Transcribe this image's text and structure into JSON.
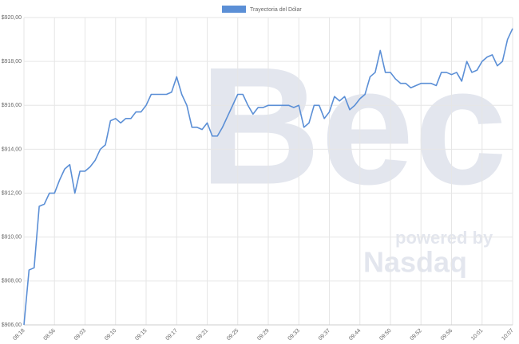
{
  "chart_data": {
    "type": "line",
    "watermark": [
      "Bec",
      "powered by",
      "Nasdaq"
    ],
    "categories": [
      "08:18",
      null,
      null,
      null,
      null,
      null,
      "08:56",
      null,
      null,
      null,
      null,
      null,
      "09:03",
      null,
      null,
      null,
      null,
      null,
      "09:10",
      null,
      null,
      null,
      null,
      null,
      "09:15",
      null,
      null,
      null,
      null,
      null,
      "09:17",
      null,
      null,
      null,
      null,
      null,
      "09:21",
      null,
      null,
      null,
      null,
      null,
      "09:25",
      null,
      null,
      null,
      null,
      null,
      "09:29",
      null,
      null,
      null,
      null,
      null,
      "09:33",
      null,
      null,
      null,
      null,
      null,
      "09:37",
      null,
      null,
      null,
      null,
      null,
      "09:44",
      null,
      null,
      null,
      null,
      null,
      "09:50",
      null,
      null,
      null,
      null,
      null,
      "09:52",
      null,
      null,
      null,
      null,
      null,
      "09:56",
      null,
      null,
      null,
      null,
      null,
      "10:01",
      null,
      null,
      null,
      null,
      null,
      "10:07"
    ],
    "series": [
      {
        "name": "Trayectoria del Dólar",
        "color": "#5b8fd6",
        "values": [
          906.0,
          908.5,
          908.6,
          911.4,
          911.5,
          912.0,
          912.0,
          912.6,
          913.1,
          913.3,
          912.0,
          913.0,
          913.0,
          913.2,
          913.5,
          914.0,
          914.2,
          915.3,
          915.4,
          915.2,
          915.4,
          915.4,
          915.7,
          915.7,
          916.0,
          916.5,
          916.5,
          916.5,
          916.5,
          916.6,
          917.3,
          916.5,
          916.0,
          915.0,
          915.0,
          914.9,
          915.2,
          914.6,
          914.6,
          915.0,
          915.5,
          916.0,
          916.5,
          916.5,
          916.0,
          915.6,
          915.9,
          915.9,
          916.0,
          916.0,
          916.0,
          916.0,
          916.0,
          915.9,
          916.0,
          915.0,
          915.2,
          916.0,
          916.0,
          915.4,
          915.7,
          916.4,
          916.2,
          916.4,
          915.8,
          916.0,
          916.3,
          916.5,
          917.3,
          917.5,
          918.5,
          917.5,
          917.5,
          917.2,
          917.0,
          917.0,
          916.8,
          916.9,
          917.0,
          917.0,
          917.0,
          916.9,
          917.5,
          917.5,
          917.4,
          917.5,
          917.1,
          918.0,
          917.5,
          917.6,
          918.0,
          918.2,
          918.3,
          917.8,
          918.0,
          919.0,
          919.5
        ]
      }
    ],
    "ylim": [
      906,
      920
    ],
    "yticks": [
      {
        "value": 906,
        "label": "$906,00"
      },
      {
        "value": 908,
        "label": "$908,00"
      },
      {
        "value": 910,
        "label": "$910,00"
      },
      {
        "value": 912,
        "label": "$912,00"
      },
      {
        "value": 914,
        "label": "$914,00"
      },
      {
        "value": 916,
        "label": "$916,00"
      },
      {
        "value": 918,
        "label": "$918,00"
      },
      {
        "value": 920,
        "label": "$920,00"
      }
    ],
    "grid": true
  }
}
